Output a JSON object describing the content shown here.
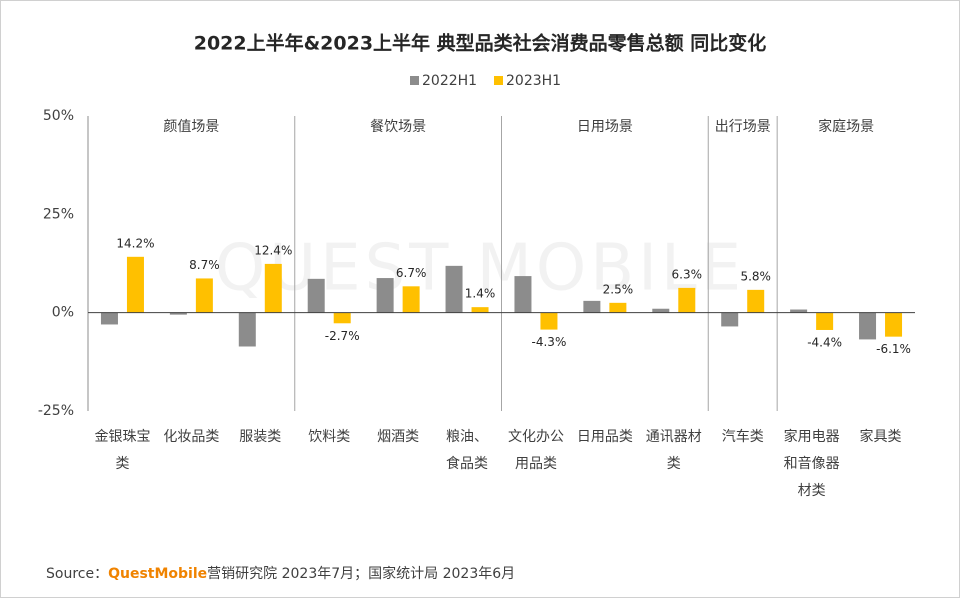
{
  "chart_data": {
    "type": "bar",
    "title": "2022上半年&2023上半年 典型品类社会消费品零售总额 同比变化",
    "categories": [
      "金银珠宝类",
      "化妆品类",
      "服装类",
      "饮料类",
      "烟酒类",
      "粮油、食品类",
      "文化办公用品类",
      "日用品类",
      "通讯器材类",
      "汽车类",
      "家用电器和音像器材类",
      "家具类"
    ],
    "groups": [
      {
        "name": "颜值场景",
        "size": 3
      },
      {
        "name": "餐饮场景",
        "size": 3
      },
      {
        "name": "日用场景",
        "size": 3
      },
      {
        "name": "出行场景",
        "size": 1
      },
      {
        "name": "家庭场景",
        "size": 2
      }
    ],
    "series": [
      {
        "name": "2022H1",
        "color": "#8c8c8c",
        "values": [
          -3.0,
          -0.5,
          -8.6,
          8.6,
          8.8,
          11.9,
          9.3,
          3.0,
          1.0,
          -3.5,
          0.8,
          -6.8
        ]
      },
      {
        "name": "2023H1",
        "color": "#ffc000",
        "values": [
          14.2,
          8.7,
          12.4,
          -2.7,
          6.7,
          1.4,
          -4.3,
          2.5,
          6.3,
          5.8,
          -4.4,
          -6.1
        ],
        "value_labels": [
          "14.2%",
          "8.7%",
          "12.4%",
          "-2.7%",
          "6.7%",
          "1.4%",
          "-4.3%",
          "2.5%",
          "6.3%",
          "5.8%",
          "-4.4%",
          "-6.1%"
        ]
      }
    ],
    "ylim": [
      -25,
      50
    ],
    "yticks": [
      {
        "value": -25,
        "label": "-25%"
      },
      {
        "value": 0,
        "label": "0%"
      },
      {
        "value": 25,
        "label": "25%"
      },
      {
        "value": 50,
        "label": "50%"
      }
    ],
    "legend": "top",
    "watermark": "QUEST MOBILE",
    "source": {
      "prefix": "Source：",
      "brand": "QuestMobile",
      "text": "营销研究院 2023年7月；国家统计局 2023年6月"
    }
  }
}
